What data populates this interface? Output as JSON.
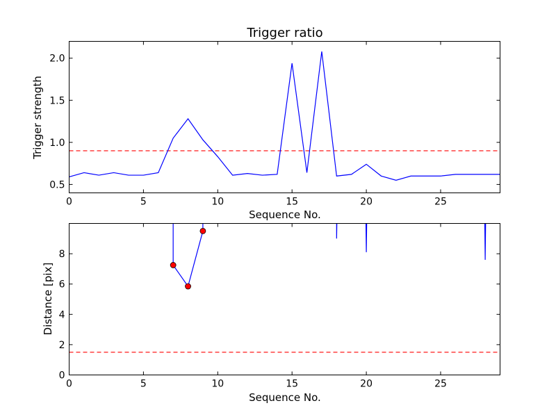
{
  "chart_data": [
    {
      "type": "line",
      "title": "Trigger ratio",
      "xlabel": "Sequence No.",
      "ylabel": "Trigger strength",
      "xlim": [
        0,
        29
      ],
      "ylim": [
        0.4,
        2.2
      ],
      "xticks": [
        "0",
        "5",
        "10",
        "15",
        "20",
        "25"
      ],
      "yticks": [
        "0.5",
        "1.0",
        "1.5",
        "2.0"
      ],
      "colors": {
        "line": "#0000ff",
        "threshold": "#ff0000"
      },
      "threshold": 0.9,
      "series": [
        {
          "x": [
            0,
            1,
            2,
            3,
            4,
            5,
            6,
            7,
            8,
            9,
            10,
            11,
            12,
            13,
            14,
            15,
            16,
            17,
            18,
            19,
            20,
            21,
            22,
            23,
            24,
            25,
            26,
            27,
            28,
            29
          ],
          "values": [
            0.59,
            0.64,
            0.61,
            0.64,
            0.61,
            0.61,
            0.64,
            1.05,
            1.28,
            1.03,
            0.83,
            0.61,
            0.63,
            0.61,
            0.62,
            1.94,
            0.64,
            2.08,
            0.6,
            0.62,
            0.74,
            0.6,
            0.55,
            0.6,
            0.6,
            0.6,
            0.62,
            0.62,
            0.62,
            0.62
          ]
        }
      ]
    },
    {
      "type": "line",
      "title": "",
      "xlabel": "Sequence No.",
      "ylabel": "Distance [pix]",
      "xlim": [
        0,
        29
      ],
      "ylim": [
        0,
        10
      ],
      "xticks": [
        "0",
        "5",
        "10",
        "15",
        "20",
        "25"
      ],
      "yticks": [
        "0",
        "2",
        "4",
        "6",
        "8"
      ],
      "colors": {
        "line": "#0000ff",
        "threshold": "#ff0000",
        "marker": "#ff0000"
      },
      "threshold": 1.5,
      "series": [
        {
          "x": [
            7,
            7,
            8,
            9,
            9
          ],
          "values": [
            12,
            7.25,
            5.85,
            9.5,
            12
          ]
        },
        {
          "x": [
            18,
            18,
            18.05
          ],
          "values": [
            12,
            9.0,
            12
          ]
        },
        {
          "x": [
            19.95,
            20,
            20.05
          ],
          "values": [
            12,
            8.1,
            12
          ]
        },
        {
          "x": [
            27.95,
            28,
            28.05
          ],
          "values": [
            12,
            7.6,
            12
          ]
        }
      ],
      "markers": {
        "x": [
          7,
          8,
          9
        ],
        "values": [
          7.25,
          5.85,
          9.5
        ]
      }
    }
  ]
}
